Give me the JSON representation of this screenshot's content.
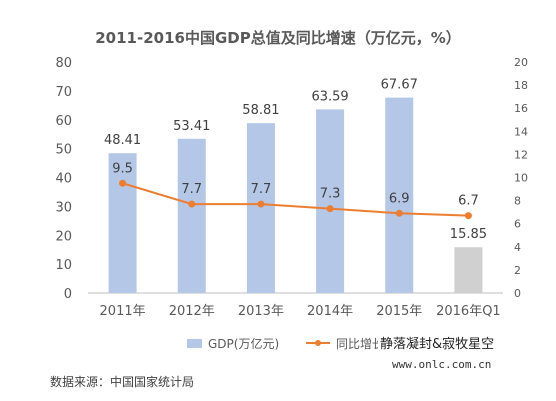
{
  "chart_data": {
    "type": "bar",
    "title": "2011-2016中国GDP总值及同比增速（万亿元，%）",
    "categories": [
      "2011年",
      "2012年",
      "2013年",
      "2014年",
      "2015年",
      "2016年Q1"
    ],
    "series": [
      {
        "name": "GDP(万亿元)",
        "type": "bar",
        "axis": "left",
        "values": [
          48.41,
          53.41,
          58.81,
          63.59,
          67.67,
          15.85
        ],
        "labels": [
          "48.41",
          "53.41",
          "58.81",
          "63.59",
          "67.67",
          "15.85"
        ],
        "colors": [
          "#b4c7e7",
          "#b4c7e7",
          "#b4c7e7",
          "#b4c7e7",
          "#b4c7e7",
          "#d0d0d0"
        ]
      },
      {
        "name": "同比增长",
        "type": "line",
        "axis": "right",
        "values": [
          9.5,
          7.7,
          7.7,
          7.3,
          6.9,
          6.7
        ],
        "labels": [
          "9.5",
          "7.7",
          "7.7",
          "7.3",
          "6.9",
          "6.7"
        ],
        "color": "#ed7d31"
      }
    ],
    "y_left": {
      "ylim": [
        0,
        80
      ],
      "ticks": [
        "0",
        "10",
        "20",
        "30",
        "40",
        "50",
        "60",
        "70",
        "80"
      ]
    },
    "y_right": {
      "ylim": [
        0,
        20
      ],
      "ticks": [
        "0",
        "2",
        "4",
        "6",
        "8",
        "10",
        "12",
        "14",
        "16",
        "18",
        "20"
      ]
    },
    "grid": false,
    "legend_position": "bottom"
  },
  "source_note": "数据来源：中国国家统计局",
  "watermark": {
    "line1": "静落凝封&寂牧星空",
    "line2": "www.onlc.com.cn"
  }
}
